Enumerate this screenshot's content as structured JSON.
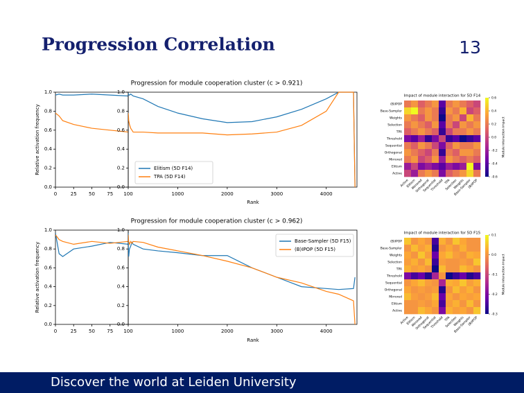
{
  "slide": {
    "title": "Progression Correlation",
    "page_number": "13",
    "footer": "Discover the world at Leiden University"
  },
  "chart_data": [
    {
      "type": "line",
      "title": "Progression for module cooperation cluster (c > 0.921)",
      "xlabel": "Rank",
      "ylabel": "Relative activation frequency",
      "x": [
        0,
        5,
        10,
        25,
        50,
        75,
        100,
        300,
        600,
        1000,
        1500,
        2000,
        2500,
        3000,
        3500,
        4000,
        4250,
        4550,
        4580
      ],
      "series": [
        {
          "name": "Elitism (5D F14)",
          "color": "#1f77b4",
          "values": [
            0.97,
            0.98,
            0.97,
            0.97,
            0.98,
            0.97,
            0.96,
            0.93,
            0.85,
            0.78,
            0.72,
            0.68,
            0.69,
            0.74,
            0.82,
            0.93,
            1.0,
            1.0,
            0.0
          ]
        },
        {
          "name": "TPA (5D F14)",
          "color": "#ff7f0e",
          "values": [
            0.78,
            0.75,
            0.7,
            0.66,
            0.62,
            0.6,
            0.58,
            0.58,
            0.57,
            0.57,
            0.57,
            0.55,
            0.56,
            0.58,
            0.65,
            0.8,
            1.0,
            1.0,
            0.0
          ]
        }
      ],
      "panels": [
        {
          "xlim": [
            0,
            100
          ],
          "xticks": [
            0,
            25,
            50,
            75,
            100
          ]
        },
        {
          "xlim": [
            0,
            4620
          ],
          "xticks": [
            1000,
            2000,
            3000,
            4000
          ]
        }
      ],
      "ylim": [
        0,
        1
      ],
      "yticks": [
        {
          "value": 0,
          "label": "0.0"
        },
        0.2,
        0.4,
        0.6,
        0.8,
        {
          "value": 1,
          "label": "1.0"
        }
      ],
      "legend": "lower left"
    },
    {
      "type": "heatmap",
      "title": "Impact of module interaction for 5D F14",
      "xlabels": [
        "Active",
        "Elitism",
        "Mirrored",
        "Orthogonal",
        "Sequential",
        "Threshold",
        "TPA",
        "Selection",
        "Weights",
        "Base-Sampler",
        "(B)IPOP"
      ],
      "ylabels": [
        "(B)IPOP",
        "Base-Sampler",
        "Weights",
        "Selection",
        "TPA",
        "Threshold",
        "Sequential",
        "Orthogonal",
        "Mirrored",
        "Elitism",
        "Active"
      ],
      "z": [
        [
          0.2,
          0.3,
          0.1,
          0.2,
          0.3,
          -0.4,
          0.2,
          0.3,
          0.2,
          0.1,
          0.0
        ],
        [
          0.5,
          0.6,
          0.2,
          0.3,
          0.2,
          -0.5,
          0.3,
          0.2,
          0.4,
          0.0,
          0.1
        ],
        [
          0.3,
          0.2,
          0.1,
          0.3,
          0.2,
          -0.6,
          0.2,
          0.3,
          0.0,
          0.4,
          0.2
        ],
        [
          0.2,
          0.3,
          0.2,
          0.1,
          0.3,
          -0.4,
          0.2,
          0.0,
          0.3,
          0.2,
          0.3
        ],
        [
          0.1,
          0.2,
          0.3,
          0.2,
          0.1,
          -0.5,
          0.0,
          0.2,
          0.2,
          0.3,
          0.2
        ],
        [
          -0.3,
          -0.4,
          -0.2,
          -0.5,
          -0.3,
          0.0,
          -0.5,
          -0.4,
          -0.6,
          -0.5,
          -0.4
        ],
        [
          0.2,
          0.1,
          0.3,
          0.2,
          0.0,
          -0.3,
          0.1,
          0.3,
          0.2,
          0.2,
          0.3
        ],
        [
          0.3,
          0.2,
          0.1,
          0.0,
          0.2,
          -0.5,
          0.2,
          0.1,
          0.3,
          0.3,
          0.2
        ],
        [
          0.2,
          0.3,
          0.0,
          0.1,
          0.3,
          -0.2,
          0.3,
          0.2,
          0.1,
          0.2,
          0.1
        ],
        [
          -0.2,
          0.0,
          -0.3,
          -0.2,
          -0.3,
          -0.4,
          -0.2,
          -0.3,
          -0.2,
          0.6,
          -0.3
        ],
        [
          0.0,
          -0.2,
          0.2,
          0.3,
          0.2,
          -0.3,
          0.1,
          0.2,
          0.3,
          0.5,
          0.2
        ]
      ],
      "zlim": [
        -0.6,
        0.6
      ],
      "cmap": "plasma",
      "colorbar_ticks": [
        0.6,
        0.4,
        0.2,
        {
          "value": 0,
          "label": "0.0"
        },
        -0.2,
        -0.4,
        -0.6
      ],
      "colorbar_label": "Module interaction impact"
    },
    {
      "type": "line",
      "title": "Progression for module cooperation cluster (c > 0.962)",
      "xlabel": "Rank",
      "ylabel": "Relative activation frequency",
      "x": [
        0,
        5,
        10,
        25,
        50,
        75,
        100,
        300,
        600,
        1000,
        1500,
        2000,
        2500,
        3000,
        3500,
        4000,
        4250,
        4550,
        4580
      ],
      "series": [
        {
          "name": "Base-Sampler (5D F15)",
          "color": "#1f77b4",
          "values": [
            0.97,
            0.75,
            0.72,
            0.8,
            0.83,
            0.87,
            0.85,
            0.8,
            0.78,
            0.76,
            0.73,
            0.73,
            0.6,
            0.5,
            0.4,
            0.38,
            0.37,
            0.38,
            0.5
          ]
        },
        {
          "name": "(B)IPOP (5D F15)",
          "color": "#ff7f0e",
          "values": [
            0.95,
            0.9,
            0.88,
            0.85,
            0.88,
            0.86,
            0.88,
            0.87,
            0.82,
            0.78,
            0.73,
            0.67,
            0.6,
            0.5,
            0.44,
            0.35,
            0.32,
            0.25,
            0.0
          ]
        }
      ],
      "panels": [
        {
          "xlim": [
            0,
            100
          ],
          "xticks": [
            0,
            25,
            50,
            75,
            100
          ]
        },
        {
          "xlim": [
            0,
            4620
          ],
          "xticks": [
            1000,
            2000,
            3000,
            4000
          ]
        }
      ],
      "ylim": [
        0,
        1
      ],
      "yticks": [
        {
          "value": 0,
          "label": "0.0"
        },
        0.2,
        0.4,
        0.6,
        0.8,
        {
          "value": 1,
          "label": "1.0"
        }
      ],
      "legend": "upper right"
    },
    {
      "type": "heatmap",
      "title": "Impact of module interaction for 5D F15",
      "xlabels": [
        "Active",
        "Elitism",
        "Mirrored",
        "Orthogonal",
        "Sequential",
        "Threshold",
        "TPA",
        "Selection",
        "Weights",
        "Base-Sampler",
        "(B)IPOP"
      ],
      "ylabels": [
        "(B)IPOP",
        "Base-Sampler",
        "Weights",
        "Selection",
        "TPA",
        "Threshold",
        "Sequential",
        "Orthogonal",
        "Mirrored",
        "Elitism",
        "Active"
      ],
      "z": [
        [
          0.05,
          0.0,
          0.02,
          0.0,
          -0.25,
          0.03,
          0.0,
          0.05,
          0.02,
          0.0,
          0.0
        ],
        [
          0.0,
          0.04,
          0.01,
          0.03,
          -0.28,
          0.0,
          0.02,
          0.0,
          0.03,
          0.0,
          0.0
        ],
        [
          0.02,
          0.0,
          0.05,
          0.01,
          -0.22,
          0.02,
          0.04,
          0.01,
          0.0,
          0.03,
          0.02
        ],
        [
          0.01,
          0.03,
          0.0,
          0.04,
          -0.26,
          0.01,
          0.0,
          0.0,
          0.01,
          0.0,
          0.05
        ],
        [
          0.03,
          0.01,
          0.02,
          0.0,
          -0.3,
          0.04,
          0.0,
          0.0,
          0.04,
          0.02,
          0.0
        ],
        [
          -0.2,
          -0.25,
          -0.22,
          -0.28,
          -0.15,
          0.0,
          -0.3,
          -0.26,
          -0.22,
          -0.28,
          -0.25
        ],
        [
          0.0,
          0.02,
          0.04,
          0.01,
          0.0,
          -0.15,
          0.03,
          0.02,
          0.05,
          0.01,
          0.03
        ],
        [
          0.02,
          0.0,
          0.01,
          0.0,
          0.01,
          -0.28,
          0.0,
          0.04,
          0.01,
          0.03,
          0.0
        ],
        [
          0.04,
          0.01,
          0.0,
          0.01,
          0.04,
          -0.22,
          0.02,
          0.0,
          0.02,
          0.01,
          0.02
        ],
        [
          0.0,
          0.0,
          0.01,
          0.0,
          0.02,
          -0.25,
          0.01,
          0.03,
          0.0,
          0.04,
          0.0
        ],
        [
          0.0,
          0.0,
          0.04,
          0.02,
          0.0,
          -0.2,
          0.03,
          0.01,
          0.02,
          0.0,
          0.05
        ]
      ],
      "zlim": [
        -0.3,
        0.1
      ],
      "cmap": "plasma",
      "colorbar_ticks": [
        0.1,
        {
          "value": 0,
          "label": "0.0"
        },
        -0.1,
        -0.2,
        -0.3
      ],
      "colorbar_label": "Module interaction impact"
    }
  ]
}
